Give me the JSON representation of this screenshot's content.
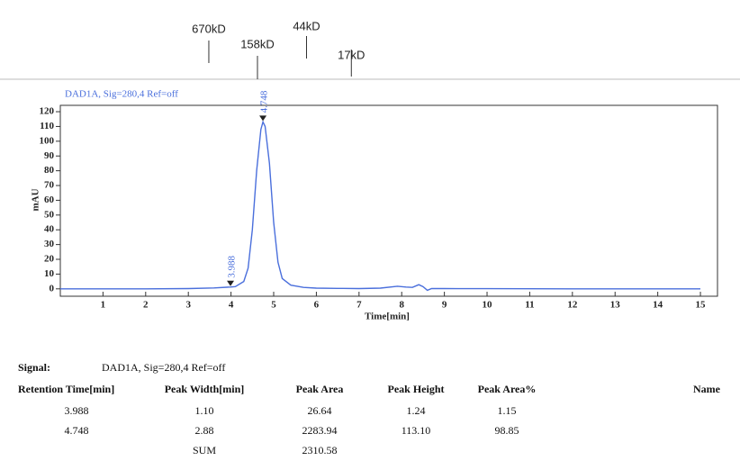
{
  "chart_data": {
    "type": "line",
    "title": "DAD1A, Sig=280,4  Ref=off",
    "x_label": "Time[min]",
    "y_label": "mAU",
    "x": [
      0,
      1,
      2,
      3,
      3.6,
      3.9,
      3.988,
      4.1,
      4.3,
      4.4,
      4.5,
      4.6,
      4.7,
      4.748,
      4.8,
      4.9,
      5.0,
      5.1,
      5.2,
      5.4,
      5.7,
      6.0,
      6.5,
      7.0,
      7.5,
      7.9,
      8.1,
      8.25,
      8.4,
      8.5,
      8.6,
      8.7,
      9,
      10,
      12,
      15
    ],
    "series": [
      {
        "color": "#4a6fdc",
        "values": [
          0,
          0,
          0,
          0.2,
          0.6,
          1.1,
          1.24,
          1.5,
          5,
          14,
          40,
          80,
          108,
          113.1,
          110,
          85,
          45,
          18,
          7,
          2.5,
          1,
          0.5,
          0.3,
          0.2,
          0.5,
          1.8,
          1.2,
          1.0,
          2.8,
          1.5,
          -1,
          0.2,
          0.2,
          0.1,
          0,
          0
        ]
      }
    ],
    "xlim": [
      0,
      15.4
    ],
    "ylim": [
      -5,
      124.3
    ],
    "xticks": [
      1,
      2,
      3,
      4,
      5,
      6,
      7,
      8,
      9,
      10,
      11,
      12,
      13,
      14,
      15
    ],
    "yticks": [
      0,
      10,
      20,
      30,
      40,
      50,
      60,
      70,
      80,
      90,
      100,
      110,
      120
    ],
    "peaks": [
      {
        "x": 3.988,
        "y": 1.24
      },
      {
        "x": 4.748,
        "y": 113.1
      }
    ],
    "annotations": [
      {
        "label": "670kD",
        "x": 3.48
      },
      {
        "label": "158kD",
        "x": 4.62
      },
      {
        "label": "44kD",
        "x": 5.77
      },
      {
        "label": "17kD",
        "x": 6.82
      }
    ]
  },
  "table": {
    "signal_label": "Signal:",
    "signal": "DAD1A, Sig=280,4  Ref=off",
    "headers": [
      "Retention Time[min]",
      "Peak Width[min]",
      "Peak Area",
      "Peak Height",
      "Peak Area%",
      "Name"
    ],
    "rows": [
      [
        "3.988",
        "1.10",
        "26.64",
        "1.24",
        "1.15"
      ],
      [
        "4.748",
        "2.88",
        "2283.94",
        "113.10",
        "98.85"
      ]
    ],
    "sum": {
      "label": "SUM",
      "value": "2310.58"
    }
  }
}
